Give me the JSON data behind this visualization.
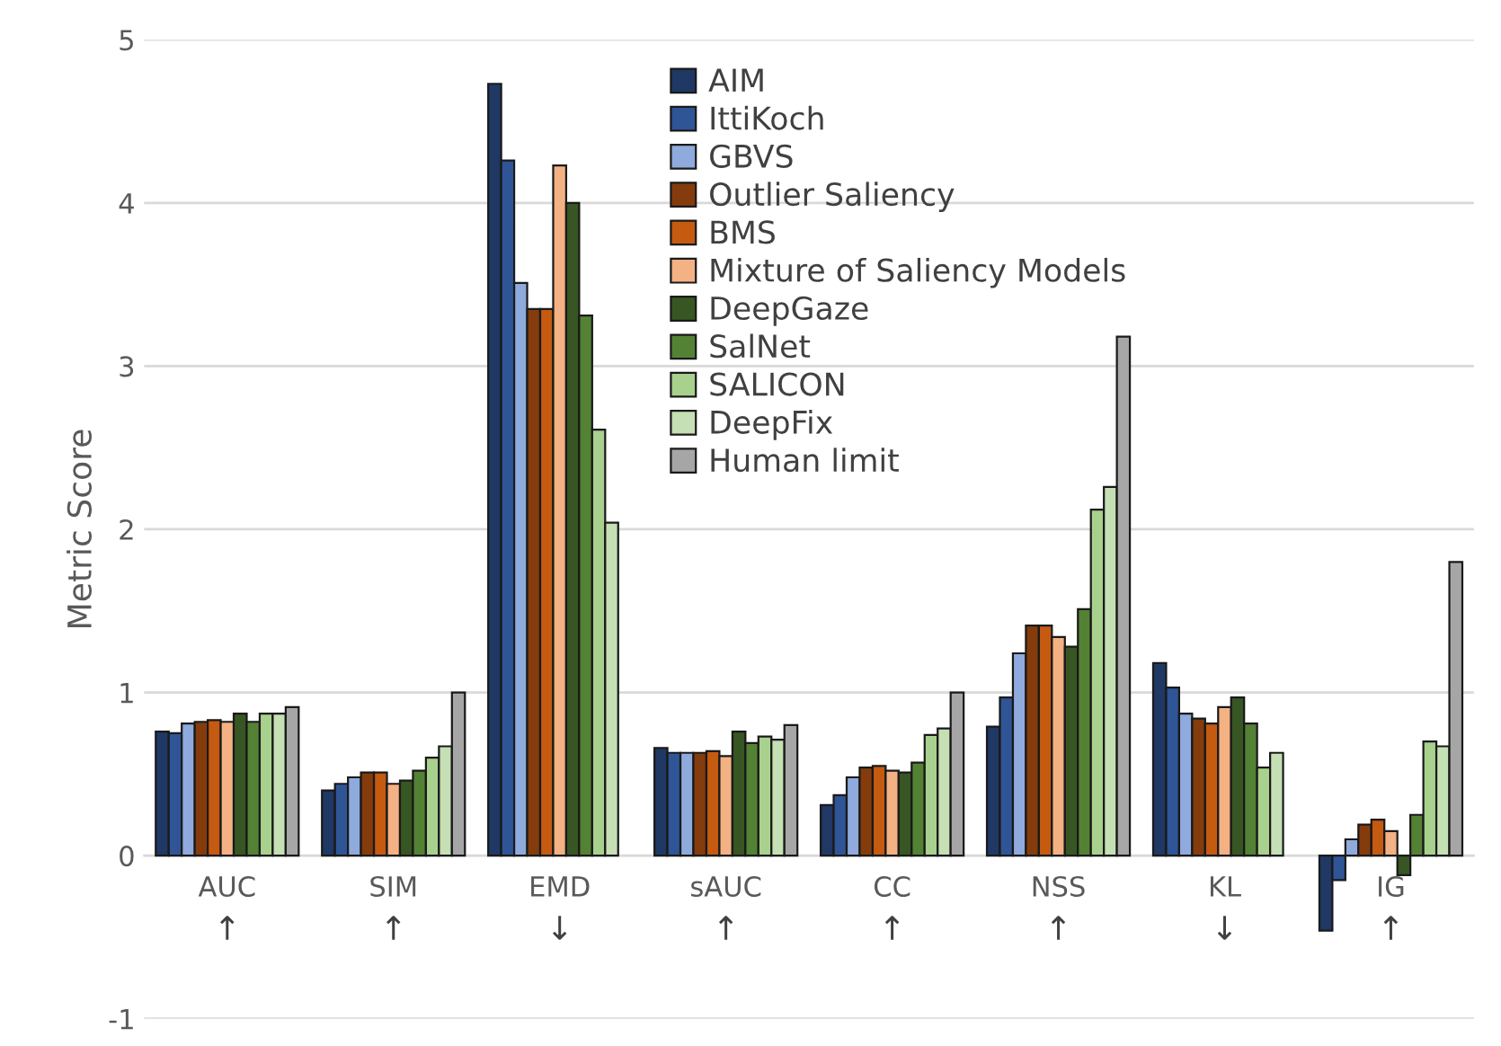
{
  "chart_data": {
    "type": "bar",
    "ylabel": "Metric Score",
    "categories": [
      "AUC",
      "SIM",
      "EMD",
      "sAUC",
      "CC",
      "NSS",
      "KL",
      "IG"
    ],
    "series": [
      {
        "name": "AIM",
        "color": "#1f3864",
        "values": [
          0.76,
          0.4,
          4.73,
          0.66,
          0.31,
          0.79,
          1.18,
          -0.46
        ]
      },
      {
        "name": "IttiKoch",
        "color": "#2f5597",
        "values": [
          0.75,
          0.44,
          4.26,
          0.63,
          0.37,
          0.97,
          1.03,
          -0.15
        ]
      },
      {
        "name": "GBVS",
        "color": "#8faadc",
        "values": [
          0.81,
          0.48,
          3.51,
          0.63,
          0.48,
          1.24,
          0.87,
          0.1
        ]
      },
      {
        "name": "Outlier Saliency",
        "color": "#843c0c",
        "values": [
          0.82,
          0.51,
          3.35,
          0.63,
          0.54,
          1.41,
          0.84,
          0.19
        ]
      },
      {
        "name": "BMS",
        "color": "#c55a11",
        "values": [
          0.83,
          0.51,
          3.35,
          0.64,
          0.55,
          1.41,
          0.81,
          0.22
        ]
      },
      {
        "name": "Mixture of Saliency Models",
        "color": "#f4b183",
        "values": [
          0.82,
          0.44,
          4.23,
          0.61,
          0.52,
          1.34,
          0.91,
          0.15
        ]
      },
      {
        "name": "DeepGaze",
        "color": "#375623",
        "values": [
          0.87,
          0.46,
          4.0,
          0.76,
          0.51,
          1.28,
          0.97,
          -0.12
        ]
      },
      {
        "name": "SalNet",
        "color": "#548235",
        "values": [
          0.82,
          0.52,
          3.31,
          0.69,
          0.57,
          1.51,
          0.81,
          0.25
        ]
      },
      {
        "name": "SALICON",
        "color": "#a9d18e",
        "values": [
          0.87,
          0.6,
          2.61,
          0.73,
          0.74,
          2.12,
          0.54,
          0.7
        ]
      },
      {
        "name": "DeepFix",
        "color": "#c5e0b4",
        "values": [
          0.87,
          0.67,
          2.04,
          0.71,
          0.78,
          2.26,
          0.63,
          0.67
        ]
      },
      {
        "name": "Human limit",
        "color": "#a6a6a6",
        "values": [
          0.91,
          1.0,
          null,
          0.8,
          1.0,
          3.18,
          null,
          1.8
        ]
      }
    ],
    "ylim": [
      -1,
      5
    ],
    "yticks": [
      -1,
      0,
      1,
      2,
      3,
      4,
      5
    ],
    "grid": "y",
    "legend": "top",
    "annotations": [
      "↑",
      "↑",
      "↓",
      "↑",
      "↑",
      "↑",
      "↓",
      "↑"
    ]
  }
}
